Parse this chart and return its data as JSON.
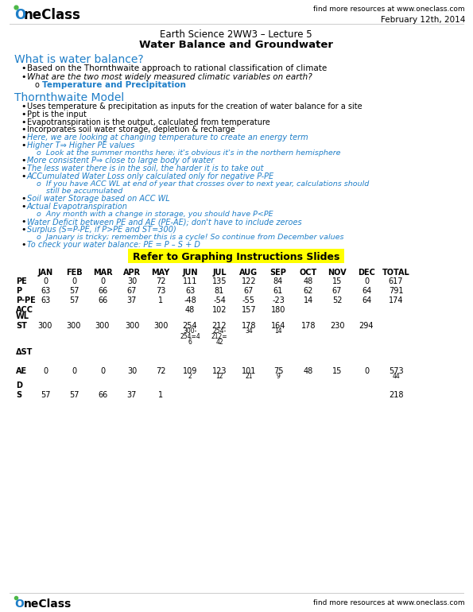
{
  "logo_text": "OneClass",
  "header_right": "find more resources at www.oneclass.com",
  "date": "February 12th, 2014",
  "course_line1": "Earth Science 2WW3 – Lecture 5",
  "course_line2": "Water Balance and Groundwater",
  "section1_title": "What is water balance?",
  "section1_bullets": [
    "Based on the Thornthwaite approach to rational classification of climate",
    "What are the two most widely measured climatic variables on earth?"
  ],
  "section1_sub": "Temperature and Precipitation",
  "section2_title": "Thornthwaite Model",
  "section2_bullets": [
    "Uses temperature & precipitation as inputs for the creation of water balance for a site",
    "Ppt is the input",
    "Evapotranspiration is the output, calculated from temperature",
    "Incorporates soil water storage, depletion & recharge",
    "Here, we are looking at changing temperature to create an energy term",
    "Higher T⇒ Higher PE values",
    "More consistent P⇒ close to large body of water",
    "The less water there is in the soil, the harder it is to take out",
    "ACCumulated Water Loss only calculated only for negative P-PE",
    "Soil water Storage based on ACC WL",
    "Actual Evapotranspiration",
    "Water Deficit between PE and AE (PE-AE); don't have to include zeroes",
    "Surplus (S=P-PE, if P>PE and ST=300)",
    "To check your water balance: PE = P – S + D"
  ],
  "section2_italics": [
    4,
    5,
    6,
    7,
    8,
    9,
    10,
    11,
    12,
    13
  ],
  "section2_subs": {
    "5": [
      "Look at the summer months here; it's obvious it's in the northern hemisphere"
    ],
    "8": [
      "If you have ACC WL at end of year that crosses over to next year, calculations should",
      "still be accumulated"
    ],
    "10": [
      "Any month with a change in storage, you should have P<PE"
    ],
    "12": [
      "January is tricky; remember this is a cycle! So continue from December values"
    ]
  },
  "highlight_text": "Refer to Graphing Instructions Slides",
  "table_headers": [
    "",
    "JAN",
    "FEB",
    "MAR",
    "APR",
    "MAY",
    "JUN",
    "JUL",
    "AUG",
    "SEP",
    "OCT",
    "NOV",
    "DEC",
    "TOTAL"
  ],
  "table_rows": [
    {
      "label": "PE",
      "vals": [
        "0",
        "0",
        "0",
        "30",
        "72",
        "111",
        "135",
        "122",
        "84",
        "48",
        "15",
        "0",
        "617"
      ]
    },
    {
      "label": "P",
      "vals": [
        "63",
        "57",
        "66",
        "67",
        "73",
        "63",
        "81",
        "67",
        "61",
        "62",
        "67",
        "64",
        "791"
      ]
    },
    {
      "label": "P-PE",
      "vals": [
        "63",
        "57",
        "66",
        "37",
        "1",
        "-48",
        "-54",
        "-55",
        "-23",
        "14",
        "52",
        "64",
        "174"
      ]
    },
    {
      "label": "ACC\nWL",
      "vals": [
        "",
        "",
        "",
        "",
        "",
        "48",
        "102",
        "157",
        "180",
        "",
        "",
        "",
        ""
      ]
    },
    {
      "label": "ST",
      "vals": [
        "300",
        "300",
        "300",
        "300",
        "300",
        "254",
        "212",
        "178",
        "164",
        "178",
        "230",
        "294",
        ""
      ],
      "sub_vals": {
        "5": [
          "300-",
          "254=4",
          "6"
        ],
        "6": [
          "254-",
          "212=",
          "42"
        ],
        "7": [
          "34"
        ],
        "8": [
          "14"
        ]
      }
    },
    {
      "label": "ΔST",
      "vals": [
        "",
        "",
        "",
        "",
        "",
        "",
        "",
        "",
        "",
        "",
        "",
        "",
        ""
      ]
    },
    {
      "label": "",
      "vals": [
        "",
        "",
        "",
        "",
        "",
        "",
        "",
        "",
        "",
        "",
        "",
        "",
        ""
      ]
    },
    {
      "label": "AE",
      "vals": [
        "0",
        "0",
        "0",
        "30",
        "72",
        "109",
        "123",
        "101",
        "75",
        "48",
        "15",
        "0",
        "573"
      ],
      "sub_vals": {
        "5": [
          "2"
        ],
        "6": [
          "12"
        ],
        "7": [
          "21"
        ],
        "8": [
          "9"
        ],
        "12": [
          "44"
        ]
      }
    },
    {
      "label": "D",
      "vals": [
        "",
        "",
        "",
        "",
        "",
        "",
        "",
        "",
        "",
        "",
        "",
        "",
        ""
      ]
    },
    {
      "label": "S",
      "vals": [
        "57",
        "57",
        "66",
        "37",
        "1",
        "",
        "",
        "",
        "",
        "",
        "",
        "",
        "218"
      ]
    }
  ],
  "footer_right": "find more resources at www.oneclass.com",
  "blue_color": "#1e7ec8",
  "highlight_color": "#ffff00",
  "black": "#000000",
  "white": "#ffffff"
}
